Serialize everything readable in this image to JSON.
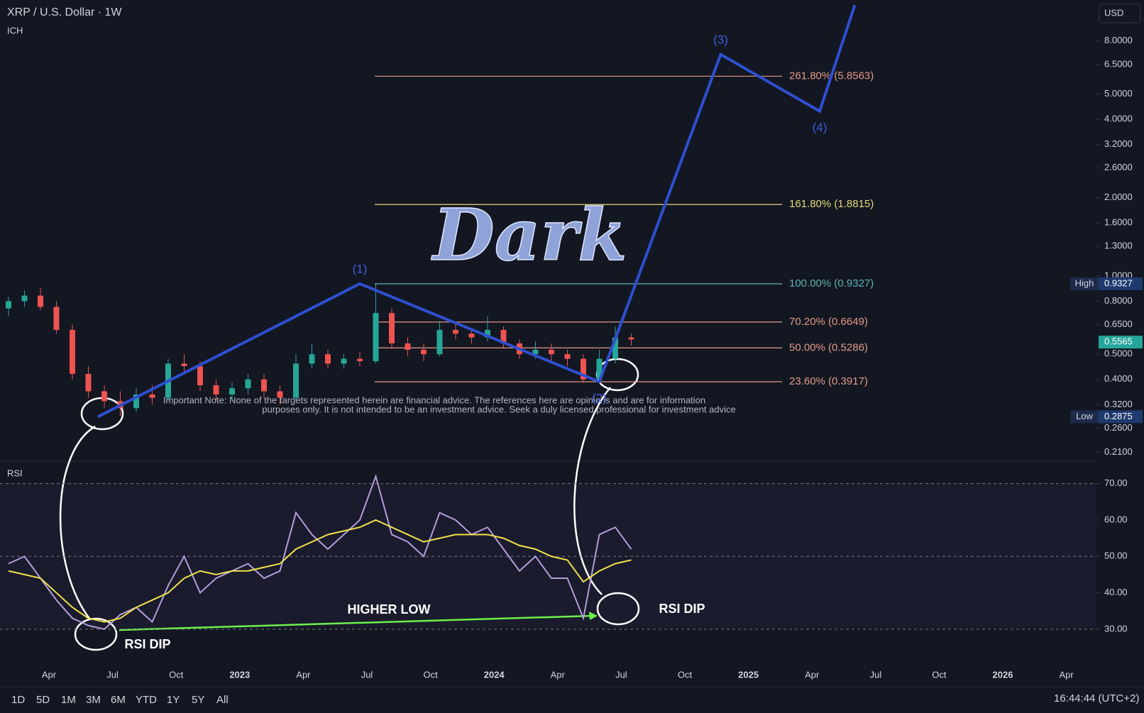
{
  "header": {
    "title": "XRP / U.S. Dollar · 1W",
    "indicator": "ICH",
    "currency": "USD"
  },
  "chart_data": [
    {
      "type": "candlestick",
      "log_scale": true,
      "up_color": "#26a69a",
      "down_color": "#ef5350",
      "open": [
        0.75,
        0.8,
        0.84,
        0.76,
        0.62,
        0.42,
        0.36,
        0.33,
        0.31,
        0.35,
        0.34,
        0.46,
        0.45,
        0.38,
        0.35,
        0.37,
        0.4,
        0.36,
        0.34,
        0.46,
        0.5,
        0.46,
        0.48,
        0.47,
        0.72,
        0.55,
        0.52,
        0.5,
        0.62,
        0.6,
        0.58,
        0.62,
        0.55,
        0.5,
        0.52,
        0.5,
        0.48,
        0.4,
        0.48,
        0.58
      ],
      "high": [
        0.83,
        0.88,
        0.9,
        0.8,
        0.65,
        0.45,
        0.38,
        0.36,
        0.37,
        0.38,
        0.48,
        0.5,
        0.47,
        0.4,
        0.39,
        0.42,
        0.42,
        0.38,
        0.5,
        0.55,
        0.52,
        0.5,
        0.51,
        0.93,
        0.75,
        0.58,
        0.55,
        0.67,
        0.66,
        0.62,
        0.7,
        0.64,
        0.57,
        0.56,
        0.55,
        0.52,
        0.5,
        0.52,
        0.64,
        0.6
      ],
      "low": [
        0.7,
        0.76,
        0.74,
        0.6,
        0.4,
        0.34,
        0.31,
        0.29,
        0.3,
        0.32,
        0.33,
        0.42,
        0.36,
        0.33,
        0.33,
        0.35,
        0.34,
        0.32,
        0.33,
        0.44,
        0.44,
        0.44,
        0.45,
        0.46,
        0.53,
        0.49,
        0.47,
        0.49,
        0.57,
        0.55,
        0.56,
        0.53,
        0.48,
        0.48,
        0.47,
        0.45,
        0.3875,
        0.4,
        0.46,
        0.54
      ],
      "close": [
        0.8,
        0.84,
        0.76,
        0.62,
        0.42,
        0.36,
        0.33,
        0.31,
        0.35,
        0.34,
        0.46,
        0.45,
        0.38,
        0.35,
        0.37,
        0.4,
        0.36,
        0.34,
        0.46,
        0.5,
        0.46,
        0.48,
        0.47,
        0.72,
        0.55,
        0.52,
        0.5,
        0.62,
        0.6,
        0.58,
        0.62,
        0.55,
        0.5,
        0.52,
        0.5,
        0.48,
        0.4,
        0.48,
        0.58,
        0.57
      ],
      "ylim": [
        0.194,
        11.5
      ],
      "yticks": [
        {
          "value": 8,
          "label": "8.0000"
        },
        {
          "value": 6.5,
          "label": "6.5000"
        },
        {
          "value": 5,
          "label": "5.0000"
        },
        {
          "value": 4,
          "label": "4.0000"
        },
        {
          "value": 3.2,
          "label": "3.2000"
        },
        {
          "value": 2.6,
          "label": "2.6000"
        },
        {
          "value": 2,
          "label": "2.0000"
        },
        {
          "value": 1.6,
          "label": "1.6000"
        },
        {
          "value": 1.3,
          "label": "1.3000"
        },
        {
          "value": 1,
          "label": "1.0000"
        },
        {
          "value": 0.8,
          "label": "0.8000"
        },
        {
          "value": 0.65,
          "label": "0.6500"
        },
        {
          "value": 0.5,
          "label": "0.5000"
        },
        {
          "value": 0.4,
          "label": "0.4000"
        },
        {
          "value": 0.32,
          "label": "0.3200"
        },
        {
          "value": 0.26,
          "label": "0.2600"
        },
        {
          "value": 0.21,
          "label": "0.2100"
        }
      ],
      "fib_levels": [
        {
          "value": 5.8563,
          "label": "261.80% (5.8563)",
          "color": "#e39a86"
        },
        {
          "value": 1.8815,
          "label": "161.80% (1.8815)",
          "color": "#e6d77a"
        },
        {
          "value": 0.9327,
          "label": "100.00% (0.9327)",
          "color": "#5fb3b3"
        },
        {
          "value": 0.6649,
          "label": "70.20% (0.6649)",
          "color": "#e39a86"
        },
        {
          "value": 0.5286,
          "label": "50.00% (0.5286)",
          "color": "#e39a86"
        },
        {
          "value": 0.3917,
          "label": "23.60% (0.3917)",
          "color": "#e39a86"
        }
      ],
      "wave": {
        "color": "#2f4fd0",
        "x": [
          5.6,
          22,
          37,
          44.6,
          50.8,
          53
        ],
        "y": [
          0.2875,
          0.9327,
          0.3917,
          7.1,
          4.3,
          11
        ],
        "labels": [
          "(1)",
          "(2)",
          "(3)",
          "(4)"
        ]
      },
      "badges": [
        {
          "label": "High",
          "value": 0.9327,
          "value_label": "0.9327"
        },
        {
          "value": 0.5565,
          "value_label": "0.5565"
        },
        {
          "label": "Low",
          "value": 0.2875,
          "value_label": "0.2875"
        }
      ],
      "watermark": "Dark",
      "note": [
        "Important Note: None of the targets represented herein are financial advice. The references here are opinions and are for information",
        "purposes only. It is not intended to be an investment advice. Seek a duly licensed professional for investment advice"
      ]
    },
    {
      "type": "line",
      "title": "RSI",
      "ylim": [
        21.2,
        75
      ],
      "yticks": [
        {
          "value": 70,
          "label": "70.00"
        },
        {
          "value": 60,
          "label": "60.00"
        },
        {
          "value": 50,
          "label": "50.00"
        },
        {
          "value": 40,
          "label": "40.00"
        },
        {
          "value": 30,
          "label": "30.00"
        }
      ],
      "dashed_levels": [
        70,
        50,
        30
      ],
      "series": [
        {
          "color": "#b39ddb",
          "values": [
            48,
            50,
            44,
            38,
            33,
            31,
            30,
            34,
            36,
            32,
            42,
            50,
            40,
            44,
            46,
            48,
            44,
            46,
            62,
            56,
            52,
            56,
            60,
            72,
            56,
            54,
            50,
            62,
            60,
            56,
            58,
            52,
            46,
            50,
            44,
            44,
            33,
            56,
            58,
            52
          ]
        },
        {
          "color": "#f0e24a",
          "values": [
            46,
            45,
            44,
            40,
            36,
            33,
            32,
            33,
            36,
            38,
            40,
            44,
            46,
            45,
            46,
            46,
            47,
            48,
            52,
            54,
            56,
            57,
            58,
            60,
            58,
            56,
            54,
            55,
            56,
            56,
            56,
            55,
            53,
            52,
            50,
            49,
            43,
            46,
            48,
            49
          ]
        }
      ]
    }
  ],
  "x_axis_labels": [
    "Apr",
    "Jul",
    "Oct",
    "2023",
    "Apr",
    "Jul",
    "Oct",
    "2024",
    "Apr",
    "Jul",
    "Oct",
    "2025",
    "Apr",
    "Jul",
    "Oct",
    "2026",
    "Apr"
  ],
  "annotations": {
    "higher_low": "HIGHER LOW",
    "rsi_dip_1": "RSI DIP",
    "rsi_dip_2": "RSI DIP"
  },
  "toolbar": {
    "ranges": [
      "1D",
      "5D",
      "1M",
      "3M",
      "6M",
      "YTD",
      "1Y",
      "5Y",
      "All"
    ],
    "clock": "16:44:44 (UTC+2)"
  }
}
